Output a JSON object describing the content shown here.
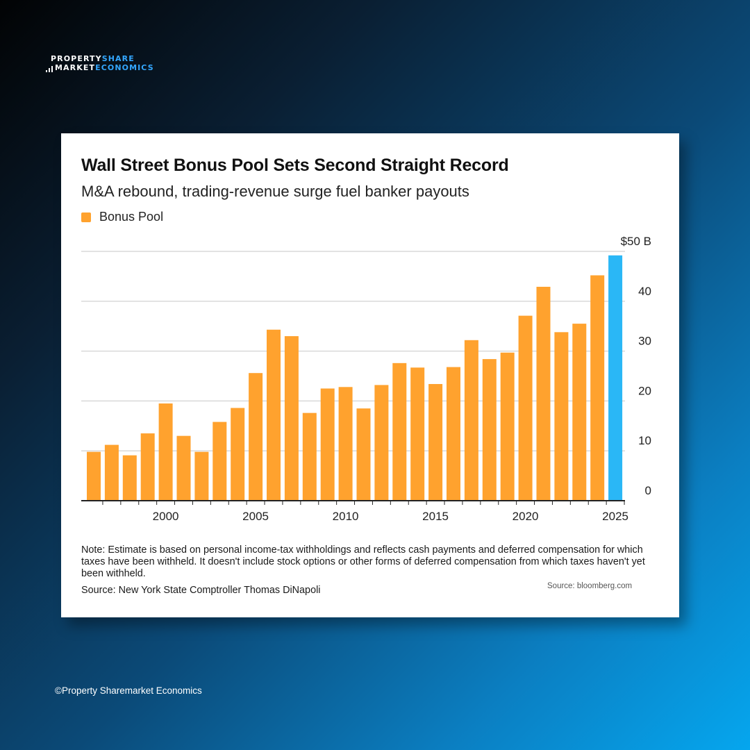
{
  "logo": {
    "line1_a": "PROPERTY",
    "line1_b": "SHARE",
    "line2_a": "MARKET",
    "line2_b": "ECONOMICS"
  },
  "copyright": "©Property Sharemarket Economics",
  "card": {
    "note": "Note: Estimate is based on personal income-tax withholdings and reflects cash payments and deferred compensation for which taxes have been withheld. It doesn't include stock options or other forms of deferred compensation from which taxes haven't yet been withheld.",
    "source": "Source: New York State Comptroller Thomas DiNapoli",
    "credit": "Source: bloomberg.com"
  },
  "chart_data": {
    "type": "bar",
    "title": "Wall Street Bonus Pool Sets Second Straight Record",
    "subtitle": "M&A rebound, trading-revenue surge fuel banker payouts",
    "legend": "top-left",
    "categories": [
      1996,
      1997,
      1998,
      1999,
      2000,
      2001,
      2002,
      2003,
      2004,
      2005,
      2006,
      2007,
      2008,
      2009,
      2010,
      2011,
      2012,
      2013,
      2014,
      2015,
      2016,
      2017,
      2018,
      2019,
      2020,
      2021,
      2022,
      2023,
      2024,
      2025
    ],
    "series": [
      {
        "name": "Bonus Pool",
        "values": [
          9.8,
          11.2,
          9.1,
          13.5,
          19.5,
          13.0,
          9.8,
          15.8,
          18.6,
          25.6,
          34.3,
          33.0,
          17.6,
          22.5,
          22.8,
          18.5,
          23.2,
          27.6,
          26.7,
          23.4,
          26.8,
          32.2,
          28.4,
          29.7,
          37.1,
          42.9,
          33.8,
          35.5,
          45.2,
          49.2
        ]
      }
    ],
    "highlight_index": 29,
    "colors": {
      "bar": "#ffa22e",
      "highlight": "#2ab7f6",
      "grid": "#d9d9d9",
      "axis": "#222222"
    },
    "xticks": [
      2000,
      2005,
      2010,
      2015,
      2020,
      2025
    ],
    "yticks": [
      {
        "value": 0,
        "label": "0"
      },
      {
        "value": 10,
        "label": "10"
      },
      {
        "value": 20,
        "label": "20"
      },
      {
        "value": 30,
        "label": "30"
      },
      {
        "value": 40,
        "label": "40"
      },
      {
        "value": 50,
        "label": "$50 B"
      }
    ],
    "ylim": [
      0,
      50
    ],
    "y_axis_side": "right",
    "grid": true
  }
}
